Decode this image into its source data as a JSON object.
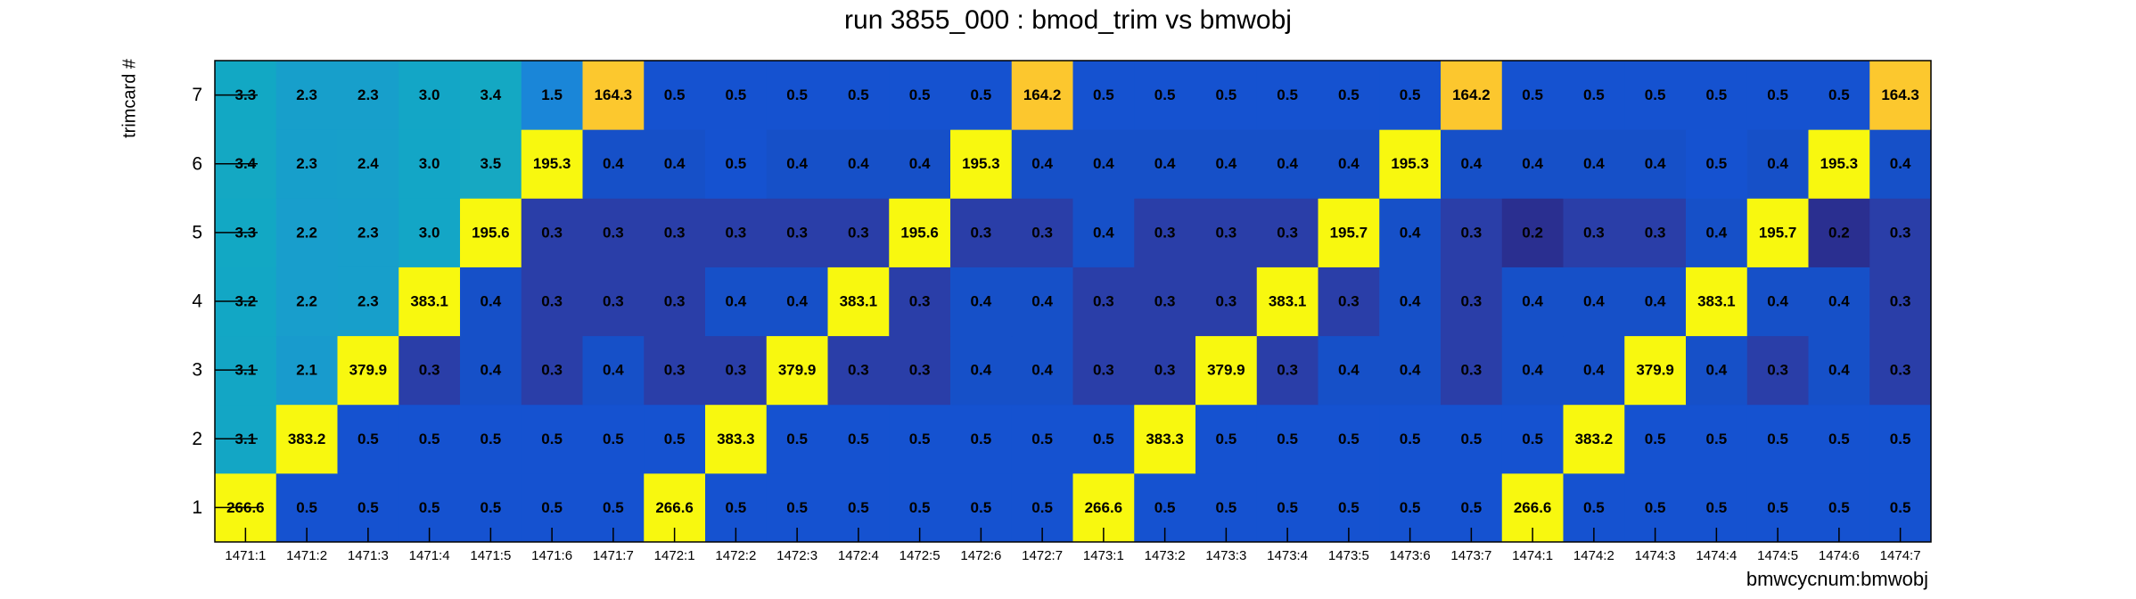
{
  "chart_data": {
    "type": "heatmap",
    "title": "run 3855_000 : bmod_trim vs bmwobj",
    "x_label": "bmwcycnum:bmwobj",
    "y_label": "trimcard #",
    "categories": [
      "1471:1",
      "1471:2",
      "1471:3",
      "1471:4",
      "1471:5",
      "1471:6",
      "1471:7",
      "1472:1",
      "1472:2",
      "1472:3",
      "1472:4",
      "1472:5",
      "1472:6",
      "1472:7",
      "1473:1",
      "1473:2",
      "1473:3",
      "1473:4",
      "1473:5",
      "1473:6",
      "1473:7",
      "1474:1",
      "1474:2",
      "1474:3",
      "1474:4",
      "1474:5",
      "1474:6",
      "1474:7"
    ],
    "ylim": [
      0.5,
      7.5
    ],
    "yticks": [
      1,
      2,
      3,
      4,
      5,
      6,
      7
    ],
    "values": [
      [
        266.6,
        0.5,
        0.5,
        0.5,
        0.5,
        0.5,
        0.5,
        266.6,
        0.5,
        0.5,
        0.5,
        0.5,
        0.5,
        0.5,
        266.6,
        0.5,
        0.5,
        0.5,
        0.5,
        0.5,
        0.5,
        266.6,
        0.5,
        0.5,
        0.5,
        0.5,
        0.5,
        0.5
      ],
      [
        3.1,
        383.2,
        0.5,
        0.5,
        0.5,
        0.5,
        0.5,
        0.5,
        383.3,
        0.5,
        0.5,
        0.5,
        0.5,
        0.5,
        0.5,
        383.3,
        0.5,
        0.5,
        0.5,
        0.5,
        0.5,
        0.5,
        383.2,
        0.5,
        0.5,
        0.5,
        0.5,
        0.5
      ],
      [
        3.1,
        2.1,
        379.9,
        0.3,
        0.4,
        0.3,
        0.4,
        0.3,
        0.3,
        379.9,
        0.3,
        0.3,
        0.4,
        0.4,
        0.3,
        0.3,
        379.9,
        0.3,
        0.4,
        0.4,
        0.3,
        0.4,
        0.4,
        379.9,
        0.4,
        0.3,
        0.4,
        0.3
      ],
      [
        3.2,
        2.2,
        2.3,
        383.1,
        0.4,
        0.3,
        0.3,
        0.3,
        0.4,
        0.4,
        383.1,
        0.3,
        0.4,
        0.4,
        0.3,
        0.3,
        0.3,
        383.1,
        0.3,
        0.4,
        0.3,
        0.4,
        0.4,
        0.4,
        383.1,
        0.4,
        0.4,
        0.3
      ],
      [
        3.3,
        2.2,
        2.3,
        3.0,
        195.6,
        0.3,
        0.3,
        0.3,
        0.3,
        0.3,
        0.3,
        195.6,
        0.3,
        0.3,
        0.4,
        0.3,
        0.3,
        0.3,
        195.7,
        0.4,
        0.3,
        0.2,
        0.3,
        0.3,
        0.4,
        195.7,
        0.2,
        0.3
      ],
      [
        3.4,
        2.3,
        2.4,
        3.0,
        3.5,
        195.3,
        0.4,
        0.4,
        0.5,
        0.4,
        0.4,
        0.4,
        195.3,
        0.4,
        0.4,
        0.4,
        0.4,
        0.4,
        0.4,
        195.3,
        0.4,
        0.4,
        0.4,
        0.4,
        0.5,
        0.4,
        195.3,
        0.4
      ],
      [
        3.3,
        2.3,
        2.3,
        3.0,
        3.4,
        1.5,
        164.3,
        0.5,
        0.5,
        0.5,
        0.5,
        0.5,
        0.5,
        164.2,
        0.5,
        0.5,
        0.5,
        0.5,
        0.5,
        0.5,
        164.2,
        0.5,
        0.5,
        0.5,
        0.5,
        0.5,
        0.5,
        164.3
      ]
    ],
    "value_labels": [
      [
        "266.6",
        "0.5",
        "0.5",
        "0.5",
        "0.5",
        "0.5",
        "0.5",
        "266.6",
        "0.5",
        "0.5",
        "0.5",
        "0.5",
        "0.5",
        "0.5",
        "266.6",
        "0.5",
        "0.5",
        "0.5",
        "0.5",
        "0.5",
        "0.5",
        "266.6",
        "0.5",
        "0.5",
        "0.5",
        "0.5",
        "0.5",
        "0.5"
      ],
      [
        "3.1",
        "383.2",
        "0.5",
        "0.5",
        "0.5",
        "0.5",
        "0.5",
        "0.5",
        "383.3",
        "0.5",
        "0.5",
        "0.5",
        "0.5",
        "0.5",
        "0.5",
        "383.3",
        "0.5",
        "0.5",
        "0.5",
        "0.5",
        "0.5",
        "0.5",
        "383.2",
        "0.5",
        "0.5",
        "0.5",
        "0.5",
        "0.5"
      ],
      [
        "3.1",
        "2.1",
        "379.9",
        "0.3",
        "0.4",
        "0.3",
        "0.4",
        "0.3",
        "0.3",
        "379.9",
        "0.3",
        "0.3",
        "0.4",
        "0.4",
        "0.3",
        "0.3",
        "379.9",
        "0.3",
        "0.4",
        "0.4",
        "0.3",
        "0.4",
        "0.4",
        "379.9",
        "0.4",
        "0.3",
        "0.4",
        "0.3"
      ],
      [
        "3.2",
        "2.2",
        "2.3",
        "383.1",
        "0.4",
        "0.3",
        "0.3",
        "0.3",
        "0.4",
        "0.4",
        "383.1",
        "0.3",
        "0.4",
        "0.4",
        "0.3",
        "0.3",
        "0.3",
        "383.1",
        "0.3",
        "0.4",
        "0.3",
        "0.4",
        "0.4",
        "0.4",
        "383.1",
        "0.4",
        "0.4",
        "0.3"
      ],
      [
        "3.3",
        "2.2",
        "2.3",
        "3.0",
        "195.6",
        "0.3",
        "0.3",
        "0.3",
        "0.3",
        "0.3",
        "0.3",
        "195.6",
        "0.3",
        "0.3",
        "0.4",
        "0.3",
        "0.3",
        "0.3",
        "195.7",
        "0.4",
        "0.3",
        "0.2",
        "0.3",
        "0.3",
        "0.4",
        "195.7",
        "0.2",
        "0.3"
      ],
      [
        "3.4",
        "2.3",
        "2.4",
        "3.0",
        "3.5",
        "195.3",
        "0.4",
        "0.4",
        "0.5",
        "0.4",
        "0.4",
        "0.4",
        "195.3",
        "0.4",
        "0.4",
        "0.4",
        "0.4",
        "0.4",
        "0.4",
        "195.3",
        "0.4",
        "0.4",
        "0.4",
        "0.4",
        "0.5",
        "0.4",
        "195.3",
        "0.4"
      ],
      [
        "3.3",
        "2.3",
        "2.3",
        "3.0",
        "3.4",
        "1.5",
        "164.3",
        "0.5",
        "0.5",
        "0.5",
        "0.5",
        "0.5",
        "0.5",
        "164.2",
        "0.5",
        "0.5",
        "0.5",
        "0.5",
        "0.5",
        "0.5",
        "164.2",
        "0.5",
        "0.5",
        "0.5",
        "0.5",
        "0.5",
        "0.5",
        "164.3"
      ]
    ],
    "colorscale": [
      [
        0.2,
        "#2a2f90"
      ],
      [
        0.3,
        "#2a3ea8"
      ],
      [
        0.4,
        "#1650c8"
      ],
      [
        0.5,
        "#1552d0"
      ],
      [
        1.5,
        "#1a86d8"
      ],
      [
        2.2,
        "#189ecc"
      ],
      [
        3.3,
        "#12a8c4"
      ],
      [
        164,
        "#fcc72e"
      ],
      [
        195,
        "#f8f80f"
      ]
    ]
  }
}
